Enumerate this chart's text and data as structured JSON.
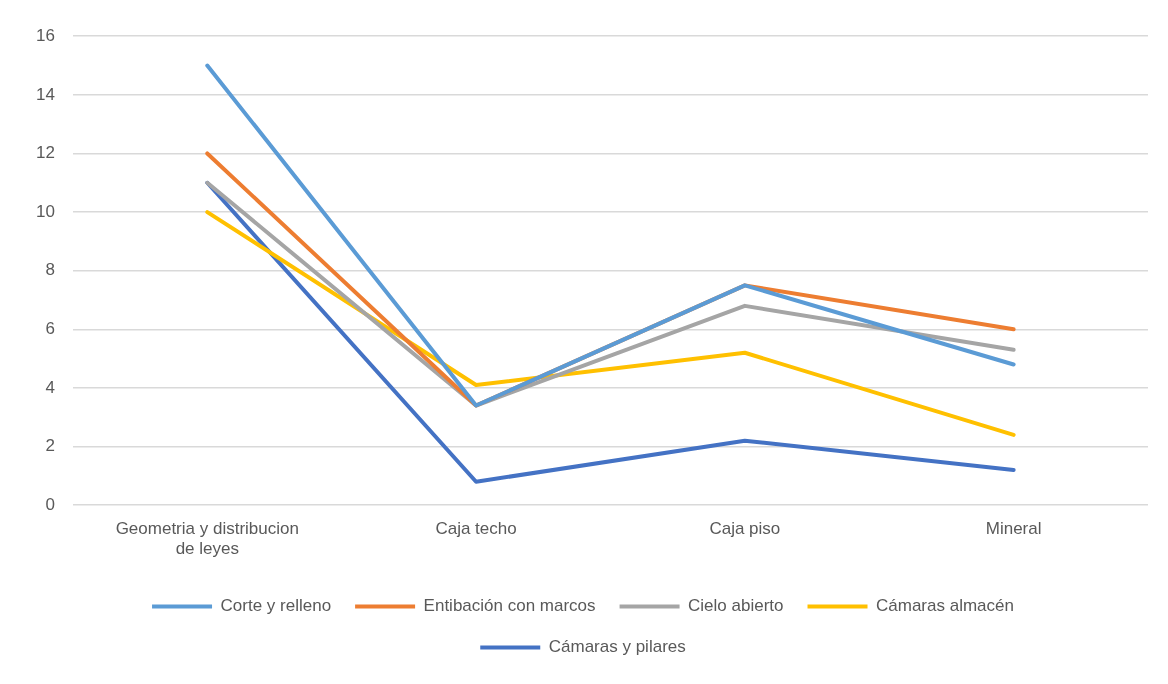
{
  "chart_data": {
    "type": "line",
    "categories": [
      "Geometria y distribucion de leyes",
      "Caja techo",
      "Caja piso",
      "Mineral"
    ],
    "series": [
      {
        "name": "Corte y relleno",
        "color": "#5b9bd5",
        "values": [
          15,
          3.4,
          7.5,
          4.8
        ]
      },
      {
        "name": "Entibación con marcos",
        "color": "#ed7d31",
        "values": [
          12,
          3.4,
          7.5,
          6
        ]
      },
      {
        "name": "Cielo abierto",
        "color": "#a5a5a5",
        "values": [
          11,
          3.4,
          6.8,
          5.3
        ]
      },
      {
        "name": "Cámaras almacén",
        "color": "#ffc000",
        "values": [
          10,
          4.1,
          5.2,
          2.4
        ]
      },
      {
        "name": "Cámaras y pilares",
        "color": "#4472c4",
        "values": [
          11,
          0.8,
          2.2,
          1.2
        ]
      }
    ],
    "ylim": [
      0,
      16
    ],
    "yticks": [
      0,
      2,
      4,
      6,
      8,
      10,
      12,
      14,
      16
    ],
    "grid": "y",
    "legend": "bottom",
    "marker": "none",
    "line_style": "solid"
  }
}
